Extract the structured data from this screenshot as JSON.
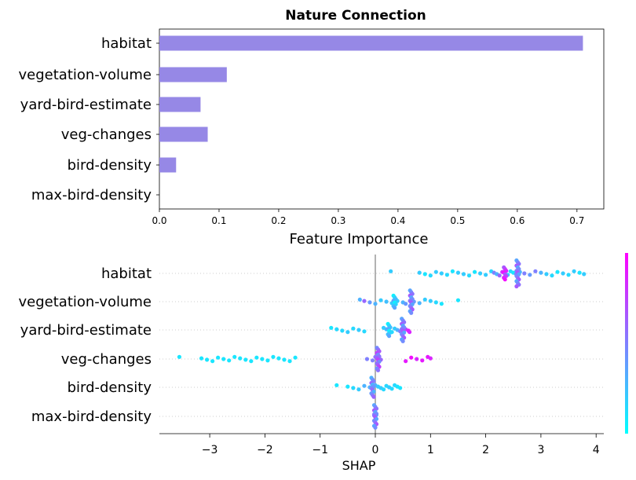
{
  "chart_data": [
    {
      "type": "bar",
      "orientation": "horizontal",
      "title": "Nature Connection",
      "xlabel": "Feature Importance",
      "ylabel": "",
      "categories": [
        "habitat",
        "vegetation-volume",
        "yard-bird-estimate",
        "veg-changes",
        "bird-density",
        "max-bird-density"
      ],
      "values": [
        0.71,
        0.113,
        0.069,
        0.081,
        0.028,
        0.0
      ],
      "xlim": [
        0.0,
        0.745
      ],
      "xticks": [
        "0.0",
        "0.1",
        "0.2",
        "0.3",
        "0.4",
        "0.5",
        "0.6",
        "0.7"
      ],
      "bar_color": "#9688e6",
      "grid": false
    },
    {
      "type": "scatter",
      "subtype": "shap-beeswarm",
      "xlabel": "SHAP",
      "categories": [
        "habitat",
        "vegetation-volume",
        "yard-bird-estimate",
        "veg-changes",
        "bird-density",
        "max-bird-density"
      ],
      "xlim": [
        -3.9,
        4.15
      ],
      "xticks": [
        "−3",
        "−2",
        "−1",
        "0",
        "1",
        "2",
        "3",
        "4"
      ],
      "colormap": [
        "#00ffff",
        "#ff00ff"
      ],
      "grid": false,
      "series": [
        {
          "feature": "habitat",
          "points": [
            [
              0.28,
              0.2
            ],
            [
              0.8,
              0.2
            ],
            [
              0.9,
              0.1
            ],
            [
              1.0,
              0.15
            ],
            [
              1.1,
              0.2
            ],
            [
              1.2,
              0.2
            ],
            [
              1.3,
              0.15
            ],
            [
              1.4,
              0.1
            ],
            [
              1.5,
              0.2
            ],
            [
              1.6,
              0.2
            ],
            [
              1.7,
              0.15
            ],
            [
              1.8,
              0.1
            ],
            [
              1.9,
              0.2
            ],
            [
              2.0,
              0.2
            ],
            [
              2.1,
              0.15
            ],
            [
              2.15,
              0.5
            ],
            [
              2.2,
              0.3
            ],
            [
              2.25,
              0.6
            ],
            [
              2.3,
              0.8
            ],
            [
              2.35,
              0.7
            ],
            [
              2.4,
              0.2
            ],
            [
              2.45,
              0.15
            ],
            [
              2.5,
              0.1
            ],
            [
              2.55,
              0.5
            ],
            [
              2.58,
              0.5
            ],
            [
              2.62,
              0.3
            ],
            [
              2.7,
              0.5
            ],
            [
              2.8,
              0.4
            ],
            [
              2.9,
              0.5
            ],
            [
              3.0,
              0.3
            ],
            [
              3.1,
              0.2
            ],
            [
              3.2,
              0.15
            ],
            [
              3.3,
              0.1
            ],
            [
              3.4,
              0.2
            ],
            [
              3.5,
              0.15
            ],
            [
              3.6,
              0.2
            ],
            [
              3.7,
              0.1
            ],
            [
              3.78,
              0.2
            ]
          ]
        },
        {
          "feature": "vegetation-volume",
          "points": [
            [
              -0.28,
              0.3
            ],
            [
              -0.2,
              0.6
            ],
            [
              -0.1,
              0.4
            ],
            [
              0.0,
              0.3
            ],
            [
              0.1,
              0.2
            ],
            [
              0.2,
              0.25
            ],
            [
              0.3,
              0.2
            ],
            [
              0.35,
              0.15
            ],
            [
              0.4,
              0.2
            ],
            [
              0.5,
              0.3
            ],
            [
              0.55,
              0.4
            ],
            [
              0.65,
              0.5
            ],
            [
              0.7,
              0.4
            ],
            [
              0.8,
              0.3
            ],
            [
              0.9,
              0.2
            ],
            [
              1.0,
              0.2
            ],
            [
              1.1,
              0.15
            ],
            [
              1.2,
              0.1
            ],
            [
              1.5,
              0.1
            ]
          ]
        },
        {
          "feature": "yard-bird-estimate",
          "points": [
            [
              -0.8,
              0.1
            ],
            [
              -0.7,
              0.15
            ],
            [
              -0.6,
              0.15
            ],
            [
              -0.5,
              0.2
            ],
            [
              -0.4,
              0.15
            ],
            [
              -0.3,
              0.2
            ],
            [
              -0.2,
              0.15
            ],
            [
              0.15,
              0.2
            ],
            [
              0.2,
              0.25
            ],
            [
              0.25,
              0.2
            ],
            [
              0.3,
              0.15
            ],
            [
              0.35,
              0.2
            ],
            [
              0.4,
              0.3
            ],
            [
              0.45,
              0.5
            ],
            [
              0.5,
              0.5
            ],
            [
              0.55,
              0.7
            ],
            [
              0.6,
              0.9
            ],
            [
              0.62,
              0.85
            ]
          ]
        },
        {
          "feature": "veg-changes",
          "points": [
            [
              -3.55,
              0.1
            ],
            [
              -3.15,
              0.1
            ],
            [
              -3.05,
              0.1
            ],
            [
              -2.95,
              0.1
            ],
            [
              -2.85,
              0.1
            ],
            [
              -2.75,
              0.1
            ],
            [
              -2.65,
              0.1
            ],
            [
              -2.55,
              0.1
            ],
            [
              -2.45,
              0.1
            ],
            [
              -2.35,
              0.1
            ],
            [
              -2.25,
              0.1
            ],
            [
              -2.15,
              0.1
            ],
            [
              -2.05,
              0.1
            ],
            [
              -1.95,
              0.1
            ],
            [
              -1.85,
              0.1
            ],
            [
              -1.75,
              0.1
            ],
            [
              -1.65,
              0.1
            ],
            [
              -1.55,
              0.1
            ],
            [
              -1.45,
              0.1
            ],
            [
              -0.15,
              0.5
            ],
            [
              -0.05,
              0.5
            ],
            [
              0.0,
              0.55
            ],
            [
              0.05,
              0.8
            ],
            [
              0.1,
              0.6
            ],
            [
              0.55,
              0.9
            ],
            [
              0.65,
              0.95
            ],
            [
              0.75,
              0.85
            ],
            [
              0.85,
              0.9
            ],
            [
              0.95,
              0.9
            ],
            [
              1.0,
              0.85
            ]
          ]
        },
        {
          "feature": "bird-density",
          "points": [
            [
              -0.7,
              0.1
            ],
            [
              -0.5,
              0.1
            ],
            [
              -0.4,
              0.15
            ],
            [
              -0.3,
              0.2
            ],
            [
              -0.2,
              0.3
            ],
            [
              -0.1,
              0.3
            ],
            [
              -0.05,
              0.4
            ],
            [
              0.0,
              0.3
            ],
            [
              0.05,
              0.2
            ],
            [
              0.1,
              0.2
            ],
            [
              0.15,
              0.15
            ],
            [
              0.2,
              0.15
            ],
            [
              0.25,
              0.2
            ],
            [
              0.3,
              0.15
            ],
            [
              0.35,
              0.15
            ],
            [
              0.4,
              0.1
            ],
            [
              0.45,
              0.1
            ]
          ]
        },
        {
          "feature": "max-bird-density",
          "points": [
            [
              -0.02,
              0.5
            ],
            [
              -0.01,
              0.2
            ],
            [
              0.0,
              0.4
            ],
            [
              0.01,
              0.6
            ],
            [
              0.02,
              0.3
            ]
          ]
        }
      ]
    }
  ]
}
